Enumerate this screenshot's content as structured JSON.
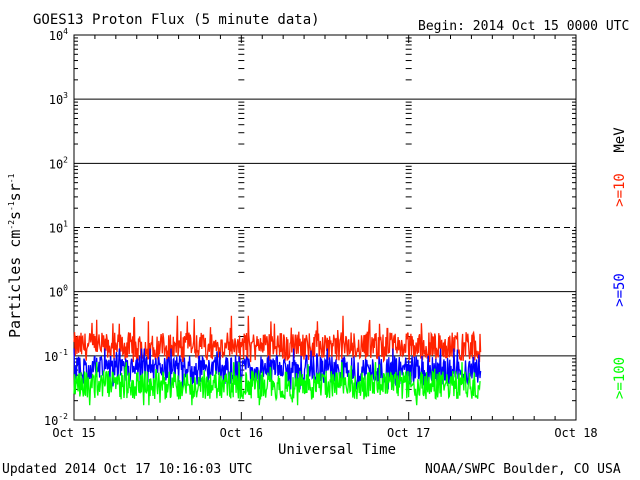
{
  "header": {
    "title": "GOES13 Proton Flux (5 minute data)",
    "begin": "Begin: 2014 Oct 15 0000 UTC"
  },
  "footer": {
    "updated": "Updated 2014 Oct 17 10:16:03 UTC",
    "credit": "NOAA/SWPC Boulder, CO USA"
  },
  "colors": {
    "ge10": "#ff2200",
    "ge50": "#0000ff",
    "ge100": "#00ff00",
    "grid": "#000000",
    "background": "#ffffff"
  },
  "chart_data": {
    "type": "line",
    "title": "GOES13 Proton Flux (5 minute data)",
    "xlabel": "Universal Time",
    "ylabel": "Particles cm-2 s-1 sr-1",
    "yscale": "log",
    "ylim": [
      0.01,
      10000
    ],
    "xlim": [
      0,
      3
    ],
    "x_ticks": [
      {
        "x": 0,
        "label": "Oct 15"
      },
      {
        "x": 1,
        "label": "Oct 16"
      },
      {
        "x": 2,
        "label": "Oct 17"
      },
      {
        "x": 3,
        "label": "Oct 18"
      }
    ],
    "y_ticks": [
      {
        "base": "10",
        "exp": "4"
      },
      {
        "base": "10",
        "exp": "3"
      },
      {
        "base": "10",
        "exp": "2"
      },
      {
        "base": "10",
        "exp": "1"
      },
      {
        "base": "10",
        "exp": "0"
      },
      {
        "base": "10",
        "exp": "-1"
      },
      {
        "base": "10",
        "exp": "-2"
      }
    ],
    "legend": {
      "unit": "MeV",
      "placement": "right",
      "entries": [
        {
          "label": ">=10",
          "color": "#ff2200"
        },
        {
          "label": ">=50",
          "color": "#0000ff"
        },
        {
          "label": ">=100",
          "color": "#00ff00"
        }
      ]
    },
    "threshold_lines": [
      {
        "value": 10,
        "style": "dashed"
      }
    ],
    "data_end": 2.43,
    "series": [
      {
        "name": ">=10 MeV",
        "color": "#ff2200",
        "typical": 0.14,
        "min": 0.08,
        "max": 0.42
      },
      {
        "name": ">=50 MeV",
        "color": "#0000ff",
        "typical": 0.06,
        "min": 0.03,
        "max": 0.13
      },
      {
        "name": ">=100 MeV",
        "color": "#00ff00",
        "typical": 0.035,
        "min": 0.017,
        "max": 0.08
      }
    ]
  }
}
